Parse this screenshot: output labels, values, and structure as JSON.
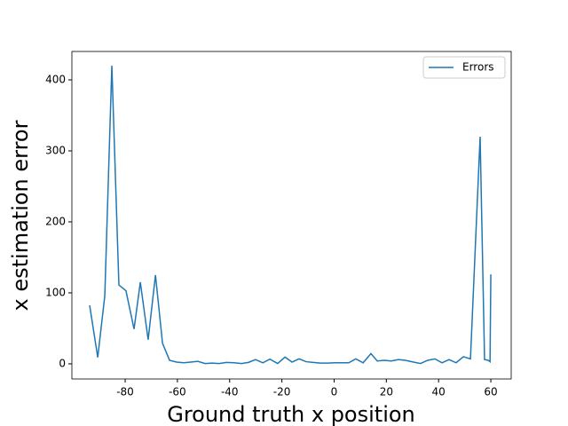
{
  "chart_data": {
    "type": "line",
    "x_label": "Ground truth x position",
    "y_label": "x estimation error",
    "x": [
      -93.6,
      -90.5,
      -87.8,
      -85.1,
      -82.4,
      -79.7,
      -76.6,
      -74.2,
      -71.2,
      -68.4,
      -65.7,
      -63.0,
      -60.3,
      -57.6,
      -54.9,
      -52.2,
      -49.4,
      -46.7,
      -44.0,
      -41.3,
      -38.2,
      -35.5,
      -32.8,
      -30.1,
      -27.3,
      -24.6,
      -21.6,
      -18.8,
      -16.1,
      -13.4,
      -10.7,
      -8.0,
      -5.2,
      -2.5,
      0.2,
      2.9,
      5.6,
      8.3,
      11.1,
      14.1,
      16.5,
      19.2,
      21.9,
      24.6,
      27.3,
      30.4,
      33.1,
      35.8,
      38.6,
      41.3,
      44.0,
      46.7,
      49.5,
      52.2,
      55.9,
      57.6,
      59.0,
      59.7,
      60.0
    ],
    "series": [
      {
        "name": "Errors",
        "color": "#1f77b4",
        "values": [
          82.5,
          9,
          96,
          420,
          111,
          103,
          49,
          115,
          34,
          125,
          29,
          5,
          2.5,
          1.5,
          2.5,
          3.5,
          0.5,
          1,
          0.5,
          2,
          1.5,
          0.5,
          2,
          6,
          1.5,
          6.5,
          0.5,
          9.5,
          2.5,
          7,
          3,
          2,
          1,
          1,
          1.5,
          1.5,
          1.5,
          7,
          1.5,
          14.5,
          4,
          5,
          4,
          6,
          5,
          2.5,
          0.5,
          5,
          7,
          1.5,
          6,
          1.5,
          10,
          7,
          320,
          6,
          5,
          3,
          126
        ]
      }
    ],
    "xlim": [
      -100.4,
      67.8
    ],
    "ylim": [
      -21.3,
      440
    ],
    "xticks": [
      -80,
      -60,
      -40,
      -20,
      0,
      20,
      40,
      60
    ],
    "yticks": [
      0,
      100,
      200,
      300,
      400
    ],
    "legend": "upper right"
  }
}
